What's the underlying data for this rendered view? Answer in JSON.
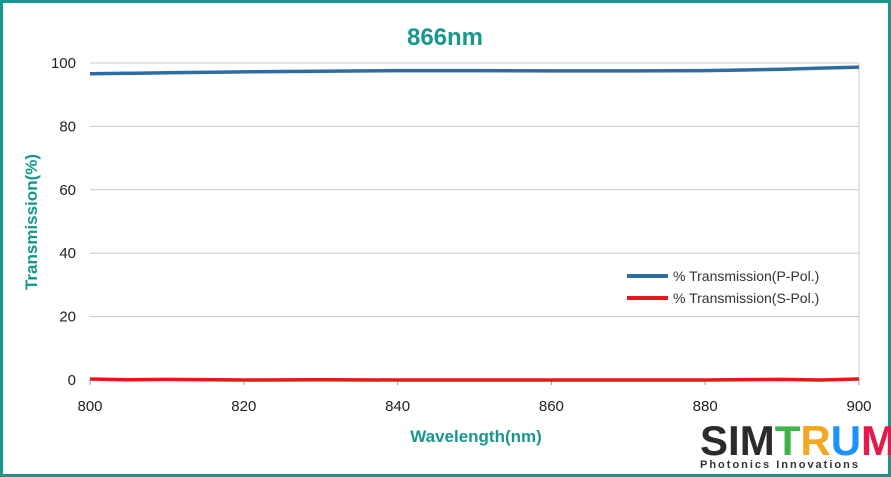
{
  "chart_data": {
    "type": "line",
    "title": "866nm",
    "xlabel": "Wavelength(nm)",
    "ylabel": "Transmission(%)",
    "xlim": [
      800,
      900
    ],
    "ylim": [
      0,
      100
    ],
    "x_ticks": [
      "800",
      "820",
      "840",
      "860",
      "880",
      "900"
    ],
    "y_ticks": [
      "0",
      "20",
      "40",
      "60",
      "80",
      "100"
    ],
    "grid": "horizontal",
    "legend_position": "right",
    "series": [
      {
        "name": "% Transmission(P-Pol.)",
        "color": "#2e6da4",
        "x": [
          800,
          810,
          820,
          830,
          840,
          850,
          860,
          870,
          880,
          885,
          890,
          895,
          900
        ],
        "y": [
          96.6,
          96.9,
          97.2,
          97.4,
          97.6,
          97.6,
          97.5,
          97.5,
          97.6,
          97.8,
          98.0,
          98.4,
          98.7
        ]
      },
      {
        "name": "% Transmission(S-Pol.)",
        "color": "#e31a1c",
        "x": [
          800,
          805,
          810,
          820,
          830,
          840,
          850,
          860,
          870,
          880,
          890,
          895,
          900
        ],
        "y": [
          0.3,
          0.1,
          0.2,
          0.0,
          0.1,
          0.0,
          0.0,
          0.0,
          0.0,
          0.0,
          0.2,
          0.0,
          0.3
        ]
      }
    ]
  },
  "logo": {
    "text": "SIMTRUM",
    "tagline": "Photonics Innovations",
    "letter_colors": [
      "#2b2b2b",
      "#2b2b2b",
      "#2b2b2b",
      "#3cb44b",
      "#f5a623",
      "#1e90ff",
      "#e6194b"
    ]
  }
}
